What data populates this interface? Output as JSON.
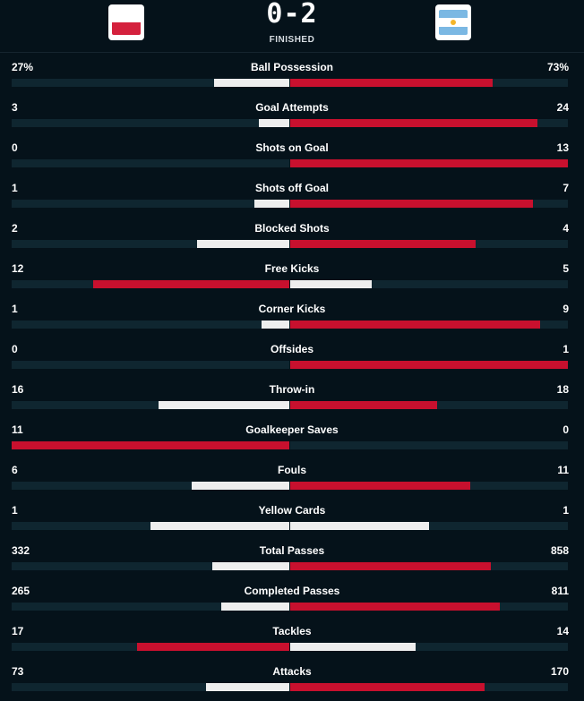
{
  "match": {
    "score": "0-2",
    "status": "FINISHED",
    "home_team_flag": "poland-flag",
    "away_team_flag": "argentina-flag"
  },
  "colors": {
    "background": "#05121a",
    "track": "#0f2630",
    "leading": "#c8102e",
    "trailing": "#eeeeee"
  },
  "stats": [
    {
      "name": "Ball Possession",
      "home": "27%",
      "away": "73%",
      "home_value": 27,
      "away_value": 73
    },
    {
      "name": "Goal Attempts",
      "home": "3",
      "away": "24",
      "home_value": 3,
      "away_value": 24
    },
    {
      "name": "Shots on Goal",
      "home": "0",
      "away": "13",
      "home_value": 0,
      "away_value": 13
    },
    {
      "name": "Shots off Goal",
      "home": "1",
      "away": "7",
      "home_value": 1,
      "away_value": 7
    },
    {
      "name": "Blocked Shots",
      "home": "2",
      "away": "4",
      "home_value": 2,
      "away_value": 4
    },
    {
      "name": "Free Kicks",
      "home": "12",
      "away": "5",
      "home_value": 12,
      "away_value": 5
    },
    {
      "name": "Corner Kicks",
      "home": "1",
      "away": "9",
      "home_value": 1,
      "away_value": 9
    },
    {
      "name": "Offsides",
      "home": "0",
      "away": "1",
      "home_value": 0,
      "away_value": 1
    },
    {
      "name": "Throw-in",
      "home": "16",
      "away": "18",
      "home_value": 16,
      "away_value": 18
    },
    {
      "name": "Goalkeeper Saves",
      "home": "11",
      "away": "0",
      "home_value": 11,
      "away_value": 0
    },
    {
      "name": "Fouls",
      "home": "6",
      "away": "11",
      "home_value": 6,
      "away_value": 11
    },
    {
      "name": "Yellow Cards",
      "home": "1",
      "away": "1",
      "home_value": 1,
      "away_value": 1
    },
    {
      "name": "Total Passes",
      "home": "332",
      "away": "858",
      "home_value": 332,
      "away_value": 858
    },
    {
      "name": "Completed Passes",
      "home": "265",
      "away": "811",
      "home_value": 265,
      "away_value": 811
    },
    {
      "name": "Tackles",
      "home": "17",
      "away": "14",
      "home_value": 17,
      "away_value": 14
    },
    {
      "name": "Attacks",
      "home": "73",
      "away": "170",
      "home_value": 73,
      "away_value": 170
    }
  ]
}
